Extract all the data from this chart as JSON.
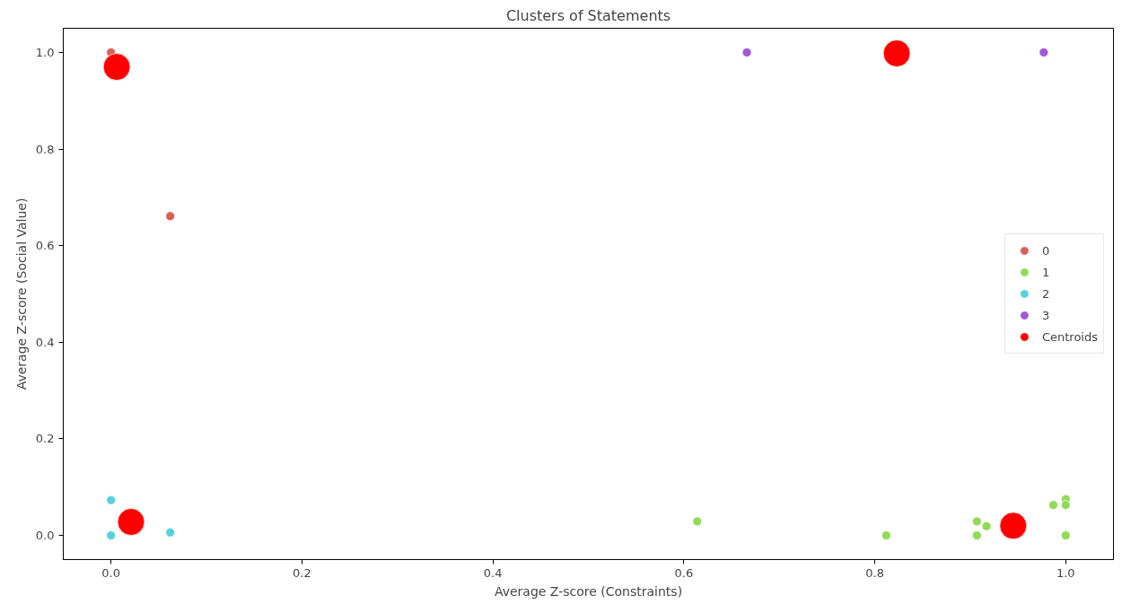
{
  "chart_data": {
    "type": "scatter",
    "title": "Clusters of Statements",
    "xlabel": "Average Z-score (Constraints)",
    "ylabel": "Average Z-score (Social Value)",
    "xlim": [
      -0.05,
      1.05
    ],
    "ylim": [
      -0.05,
      1.05
    ],
    "xticks": [
      {
        "value": 0,
        "label": "0.0"
      },
      0.2,
      0.4,
      0.6,
      0.8,
      {
        "value": 1,
        "label": "1.0"
      }
    ],
    "yticks": [
      {
        "value": 0,
        "label": "0.0"
      },
      0.2,
      0.4,
      0.6,
      0.8,
      {
        "value": 1,
        "label": "1.0"
      }
    ],
    "grid": false,
    "legend": "right",
    "marker": "circle",
    "series": [
      {
        "name": "0",
        "color": "#db5f57",
        "x": [
          0,
          0.062
        ],
        "values": [
          1.0,
          0.661
        ]
      },
      {
        "name": "1",
        "color": "#91db57",
        "x": [
          0.614,
          0.812,
          0.907,
          0.907,
          0.917,
          0.987,
          1.0,
          1.0,
          1.0
        ],
        "values": [
          0.029,
          0.0,
          0.029,
          0.0,
          0.019,
          0.063,
          0.075,
          0.063,
          0.0
        ]
      },
      {
        "name": "2",
        "color": "#57d3db",
        "x": [
          0,
          0,
          0.062
        ],
        "values": [
          0.073,
          0.0,
          0.006
        ]
      },
      {
        "name": "3",
        "color": "#a157db",
        "x": [
          0.666,
          0.977
        ],
        "values": [
          1.0,
          1.0
        ]
      },
      {
        "name": "Centroids",
        "color": "#ff0000",
        "x": [
          0.006,
          0.823,
          0.021,
          0.945
        ],
        "values": [
          0.97,
          0.998,
          0.028,
          0.02
        ]
      }
    ]
  }
}
